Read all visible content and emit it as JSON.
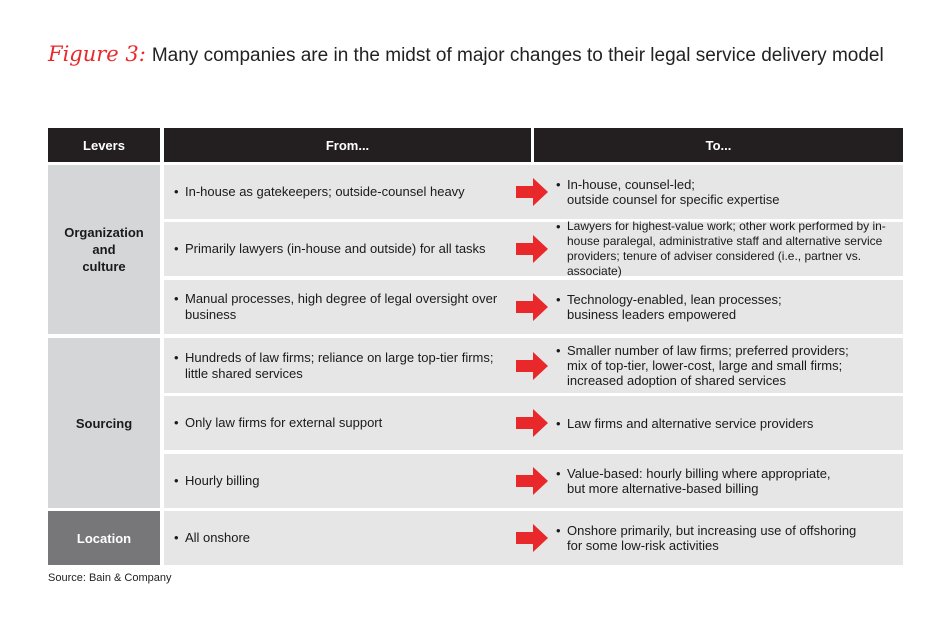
{
  "figure": {
    "label": "Figure 3:",
    "title": "Many companies are in the midst of major changes to their legal service delivery model"
  },
  "colors": {
    "header_bg": "#231f20",
    "lever_light": "#d5d6d8",
    "lever_dark": "#77777a",
    "row_bg": "#e6e6e7",
    "arrow": "#e8282a",
    "figure_label": "#e8282a"
  },
  "table": {
    "headers": {
      "levers": "Levers",
      "from": "From...",
      "to": "To..."
    },
    "bullet_char": "•",
    "arrow_icon": "right-arrow-icon",
    "levers": [
      {
        "label": "Organization\nand\nculture"
      },
      {
        "label": "Sourcing"
      },
      {
        "label": "Location"
      }
    ],
    "rows": [
      {
        "from": "In-house as gatekeepers; outside-counsel heavy",
        "to": "In-house, counsel-led;\noutside counsel for specific expertise"
      },
      {
        "from": "Primarily lawyers (in-house and outside) for all tasks",
        "to": "Lawyers for highest-value work; other work performed by in-house paralegal, administrative staff and alternative service providers; tenure of adviser considered (i.e., partner vs. associate)"
      },
      {
        "from": "Manual processes, high degree of legal oversight over business",
        "to": "Technology-enabled, lean processes;\nbusiness leaders empowered"
      },
      {
        "from": "Hundreds of law firms; reliance on large top-tier firms; little shared services",
        "to": "Smaller number of law firms; preferred providers;\nmix of top-tier, lower-cost, large and small firms;\nincreased adoption of shared services"
      },
      {
        "from": "Only law firms for external support",
        "to": "Law firms and alternative service providers"
      },
      {
        "from": "Hourly billing",
        "to": "Value-based: hourly billing where appropriate,\nbut more alternative-based billing"
      },
      {
        "from": "All onshore",
        "to": "Onshore primarily, but increasing use of offshoring\nfor some low-risk activities"
      }
    ]
  },
  "source": "Source: Bain & Company"
}
